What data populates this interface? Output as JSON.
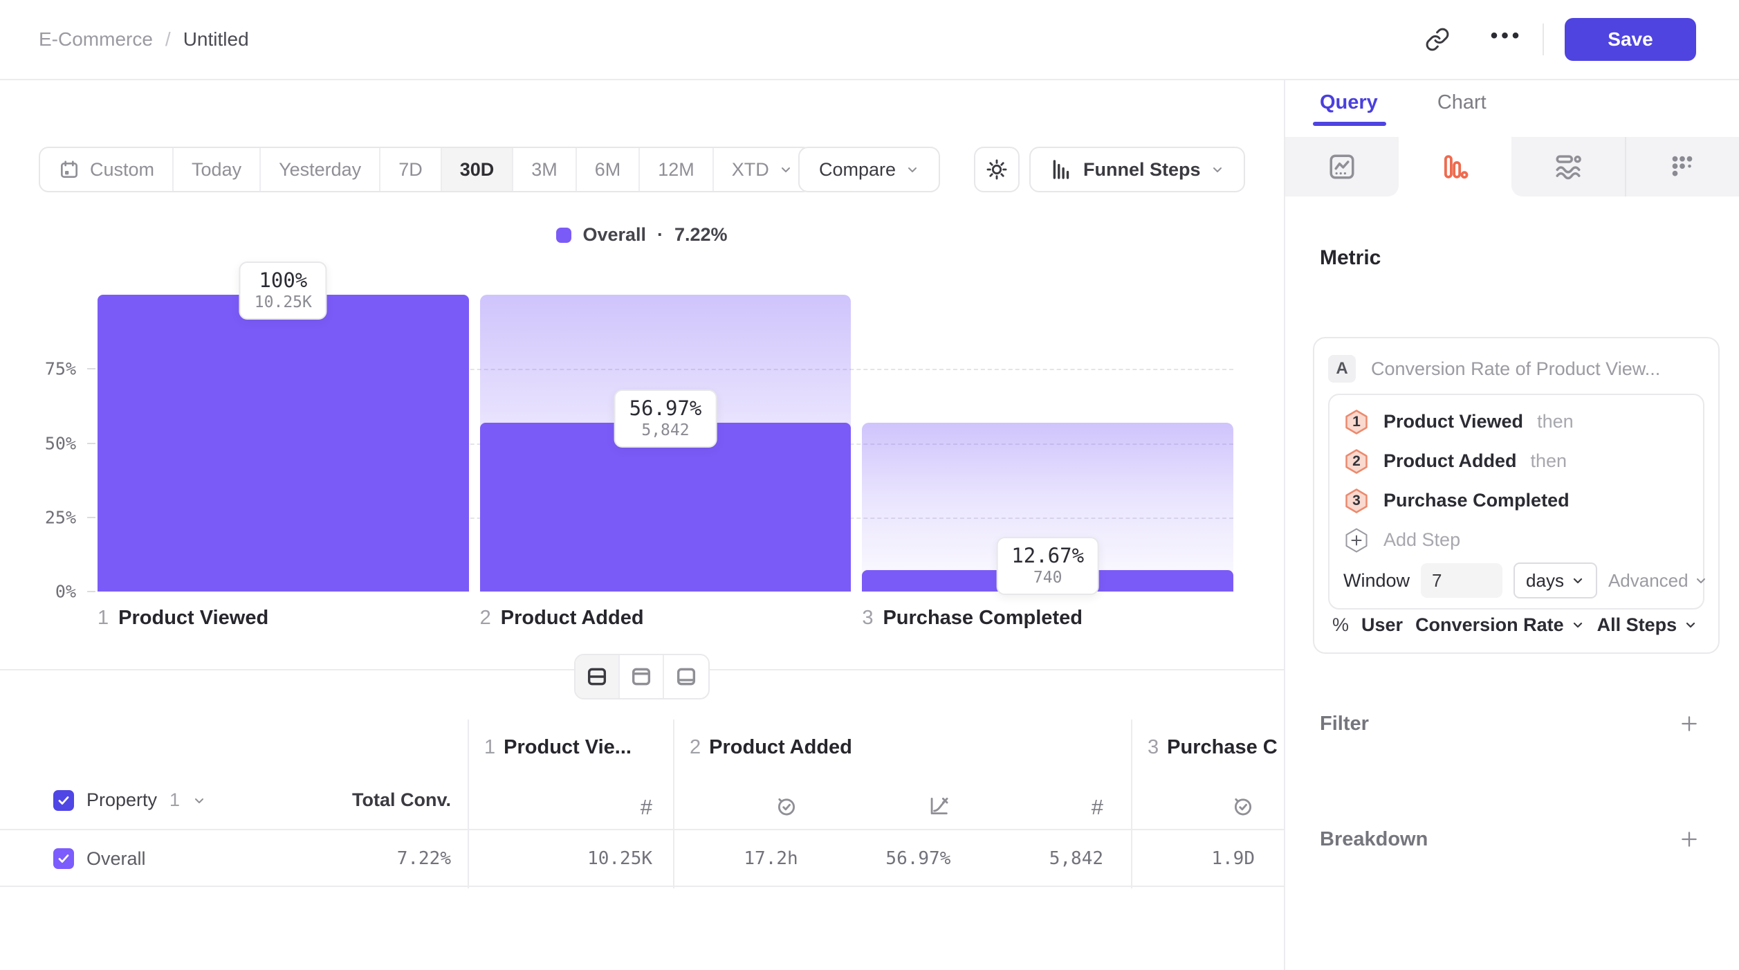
{
  "colors": {
    "accent_indigo": "#4F44E0",
    "bar_purple": "#7B5BF7",
    "coral": "#EE6B4F"
  },
  "header": {
    "breadcrumb_parent": "E-Commerce",
    "breadcrumb_sep": "/",
    "breadcrumb_current": "Untitled",
    "more_glyph": "•••",
    "save_label": "Save"
  },
  "toolbar": {
    "ranges": [
      "Custom",
      "Today",
      "Yesterday",
      "7D",
      "30D",
      "3M",
      "6M",
      "12M",
      "XTD"
    ],
    "active_range": "30D",
    "compare_label": "Compare",
    "chart_type_label": "Funnel Steps"
  },
  "legend": {
    "label": "Overall",
    "sep": "·",
    "value": "7.22%"
  },
  "chart_data": {
    "type": "bar",
    "subtype": "funnel",
    "title": "Overall · 7.22%",
    "categories": [
      "Product Viewed",
      "Product Added",
      "Purchase Completed"
    ],
    "series": [
      {
        "name": "Overall",
        "conversion_labels": [
          "100%",
          "56.97%",
          "12.67%"
        ],
        "counts": [
          "10.25K",
          "5,842",
          "740"
        ],
        "bar_height_pct_of_first": [
          100,
          56.97,
          7.22
        ],
        "ghost_height_pct_of_first": [
          0,
          100,
          56.97
        ]
      }
    ],
    "steps": [
      {
        "num": "1",
        "label": "Product Viewed",
        "pct_label": "100%",
        "count_label": "10.25K",
        "bar_pct": 100,
        "ghost_pct": 0
      },
      {
        "num": "2",
        "label": "Product Added",
        "pct_label": "56.97%",
        "count_label": "5,842",
        "bar_pct": 56.97,
        "ghost_pct": 100
      },
      {
        "num": "3",
        "label": "Purchase Completed",
        "pct_label": "12.67%",
        "count_label": "740",
        "bar_pct": 7.22,
        "ghost_pct": 56.97
      }
    ],
    "yticks": [
      "75%",
      "50%",
      "25%",
      "0%"
    ],
    "ylim": [
      0,
      100
    ],
    "grid": "dashed horizontal at 25/50/75",
    "legend_position": "top-center"
  },
  "layout_toggles": {
    "active": "split-horizontal",
    "options": [
      "split-horizontal",
      "panel-top",
      "panel-bottom"
    ]
  },
  "table": {
    "property_label": "Property",
    "property_index": "1",
    "total_conv_header": "Total Conv.",
    "columns": [
      {
        "num": "1",
        "label": "Product Vie..."
      },
      {
        "num": "2",
        "label": "Product Added"
      },
      {
        "num": "3",
        "label": "Purchase C"
      }
    ],
    "row": {
      "name": "Overall",
      "total_conv": "7.22%",
      "cells": [
        "10.25K",
        "17.2h",
        "56.97%",
        "5,842",
        "1.9D"
      ]
    }
  },
  "panel": {
    "tabs": {
      "query": "Query",
      "chart": "Chart"
    },
    "metric_heading": "Metric",
    "metric_card": {
      "badge": "A",
      "title": "Conversion Rate of Product View..."
    },
    "steps": [
      {
        "num": "1",
        "label": "Product Viewed",
        "suffix": "then"
      },
      {
        "num": "2",
        "label": "Product Added",
        "suffix": "then"
      },
      {
        "num": "3",
        "label": "Purchase Completed",
        "suffix": ""
      }
    ],
    "add_step_label": "Add Step",
    "window": {
      "label": "Window",
      "value": "7",
      "unit": "days",
      "advanced_label": "Advanced"
    },
    "measure": {
      "pct": "%",
      "subject": "User",
      "metric": "Conversion Rate",
      "scope": "All Steps"
    },
    "sections": [
      {
        "label": "Filter"
      },
      {
        "label": "Breakdown"
      }
    ]
  }
}
